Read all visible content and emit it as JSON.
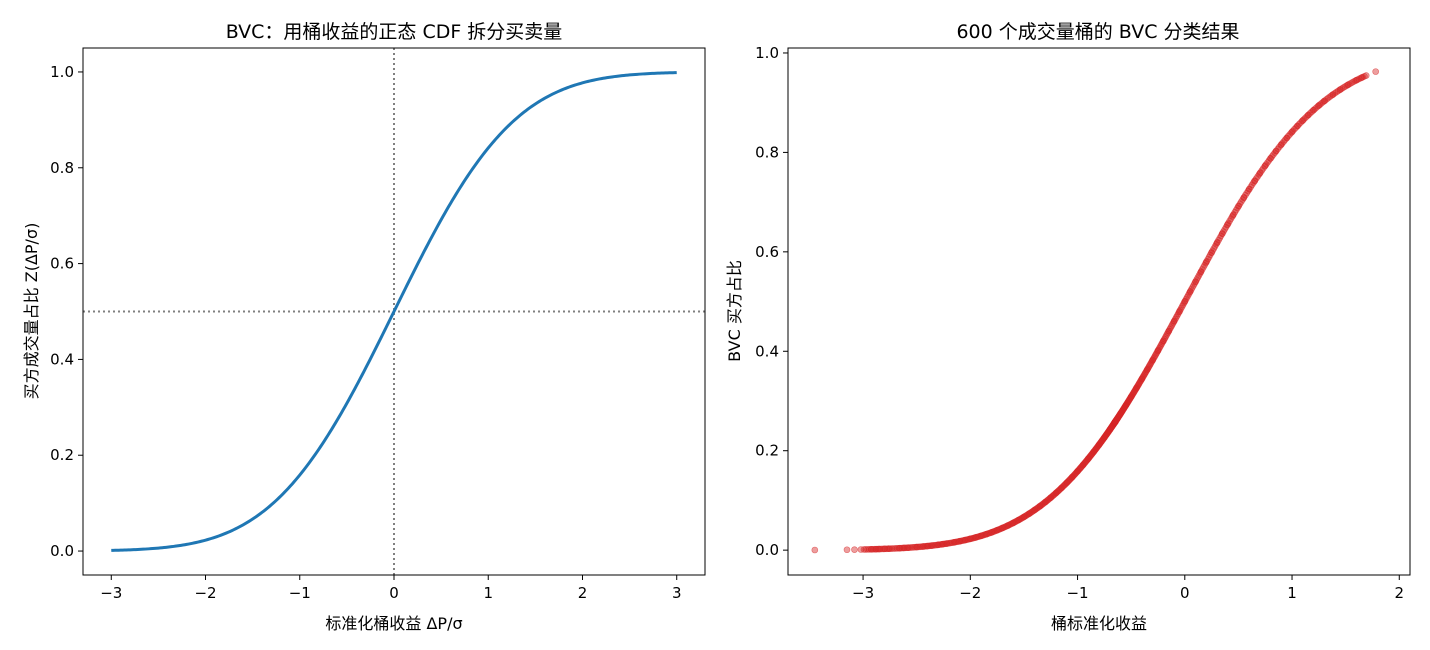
{
  "chart_data": [
    {
      "type": "line",
      "title": "BVC：用桶收益的正态 CDF 拆分买卖量",
      "xlabel": "标准化桶收益 ΔP/σ",
      "ylabel": "买方成交量占比 Z(ΔP/σ)",
      "xlim": [
        -3.3,
        3.3
      ],
      "ylim": [
        -0.05,
        1.05
      ],
      "xticks": [
        -3,
        -2,
        -1,
        0,
        1,
        2,
        3
      ],
      "xtick_labels": [
        "−3",
        "−2",
        "−1",
        "0",
        "1",
        "2",
        "3"
      ],
      "yticks": [
        0.0,
        0.2,
        0.4,
        0.6,
        0.8,
        1.0
      ],
      "ytick_labels": [
        "0.0",
        "0.2",
        "0.4",
        "0.6",
        "0.8",
        "1.0"
      ],
      "grid": false,
      "series": [
        {
          "function": "normal_cdf",
          "x_range": [
            -3,
            3
          ],
          "color": "#1f77b4"
        }
      ],
      "reference_lines": [
        {
          "orientation": "vertical",
          "x": 0,
          "color": "#808080",
          "style": "dotted"
        },
        {
          "orientation": "horizontal",
          "y": 0.5,
          "color": "#808080",
          "style": "dotted"
        }
      ]
    },
    {
      "type": "scatter",
      "title": "600 个成交量桶的 BVC 分类结果",
      "xlabel": "桶标准化收益",
      "ylabel": "BVC 买方占比",
      "xlim": [
        -3.7,
        2.1
      ],
      "ylim": [
        -0.05,
        1.01
      ],
      "xticks": [
        -3,
        -2,
        -1,
        0,
        1,
        2
      ],
      "xtick_labels": [
        "−3",
        "−2",
        "−1",
        "0",
        "1",
        "2"
      ],
      "yticks": [
        0.0,
        0.2,
        0.4,
        0.6,
        0.8,
        1.0
      ],
      "ytick_labels": [
        "0.0",
        "0.2",
        "0.4",
        "0.6",
        "0.8",
        "1.0"
      ],
      "grid": false,
      "point_color": "#d62728",
      "point_alpha": 0.45,
      "n_points": 600,
      "series": [
        {
          "x": [
            -3.45,
            -3.15,
            -3.08,
            -3.02,
            -2.92,
            -2.88,
            -2.85,
            -2.8,
            -2.76,
            -2.66,
            -2.62,
            -2.58,
            -2.5,
            -2.44,
            -2.4,
            -2.36,
            -2.3,
            -2.26,
            -2.22,
            -2.15,
            -2.1,
            -2.05,
            -2.0,
            -1.95,
            -1.9,
            -1.85,
            -1.8,
            -1.75,
            -1.7,
            -1.65,
            -1.6,
            -1.55,
            -1.5,
            -1.45,
            -1.4,
            -1.35,
            -1.3,
            -1.25,
            -1.2,
            -1.15,
            -1.1,
            -1.05,
            -1.0,
            -0.95,
            -0.9,
            -0.85,
            -0.8,
            -0.75,
            -0.7,
            -0.65,
            -0.6,
            -0.55,
            -0.5,
            -0.45,
            -0.4,
            -0.35,
            -0.3,
            -0.25,
            -0.2,
            -0.15,
            -0.1,
            -0.05,
            0.0,
            0.05,
            0.1,
            0.15,
            0.2,
            0.25,
            0.3,
            0.35,
            0.4,
            0.45,
            0.5,
            0.55,
            0.6,
            0.65,
            0.7,
            0.75,
            0.8,
            0.85,
            0.9,
            0.95,
            1.0,
            1.05,
            1.1,
            1.15,
            1.2,
            1.25,
            1.3,
            1.38,
            1.45,
            1.52,
            1.6,
            1.65,
            1.78
          ],
          "y": [
            0.0003,
            0.0008,
            0.001,
            0.0013,
            0.0018,
            0.002,
            0.0022,
            0.0026,
            0.0029,
            0.0039,
            0.0044,
            0.0049,
            0.0062,
            0.0073,
            0.0082,
            0.0091,
            0.0107,
            0.0119,
            0.0132,
            0.0158,
            0.0179,
            0.0202,
            0.0228,
            0.0256,
            0.0287,
            0.0322,
            0.0359,
            0.0401,
            0.0446,
            0.0495,
            0.0548,
            0.0606,
            0.0668,
            0.0735,
            0.0808,
            0.0885,
            0.0968,
            0.1056,
            0.1151,
            0.1251,
            0.1357,
            0.1469,
            0.1587,
            0.1711,
            0.1841,
            0.1977,
            0.2119,
            0.2266,
            0.242,
            0.2578,
            0.2743,
            0.2912,
            0.3085,
            0.3264,
            0.3446,
            0.3632,
            0.3821,
            0.4013,
            0.4207,
            0.4404,
            0.4602,
            0.4801,
            0.5,
            0.5199,
            0.5398,
            0.5596,
            0.5793,
            0.5987,
            0.6179,
            0.6368,
            0.6554,
            0.6736,
            0.6915,
            0.7088,
            0.7257,
            0.7422,
            0.758,
            0.7734,
            0.7881,
            0.8023,
            0.8159,
            0.8289,
            0.8413,
            0.8531,
            0.8643,
            0.8749,
            0.8849,
            0.8944,
            0.9032,
            0.9162,
            0.9265,
            0.9357,
            0.9452,
            0.9505,
            0.9625
          ]
        }
      ]
    }
  ]
}
